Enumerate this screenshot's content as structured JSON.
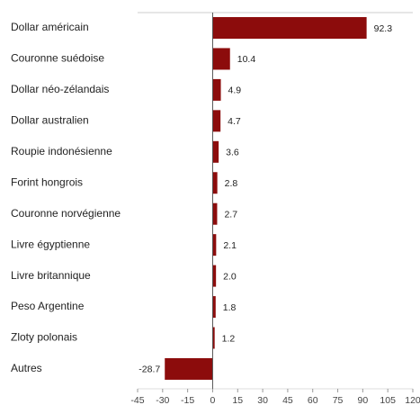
{
  "chart_data": {
    "type": "barh",
    "categories": [
      "Dollar américain",
      "Couronne suédoise",
      "Dollar néo-zélandais",
      "Dollar australien",
      "Roupie indonésienne",
      "Forint hongrois",
      "Couronne norvégienne",
      "Livre égyptienne",
      "Livre britannique",
      "Peso Argentine",
      "Zloty polonais",
      "Autres"
    ],
    "values": [
      92.3,
      10.4,
      4.9,
      4.7,
      3.6,
      2.8,
      2.7,
      2.1,
      2.0,
      1.8,
      1.2,
      -28.7
    ],
    "value_labels": [
      "92.3",
      "10.4",
      "4.9",
      "4.7",
      "3.6",
      "2.8",
      "2.7",
      "2.1",
      "2.0",
      "1.8",
      "1.2",
      "-28.7"
    ],
    "color": "#8c0c0c",
    "xlim": [
      -45,
      120
    ],
    "xticks": [
      -45,
      -30,
      -15,
      0,
      15,
      30,
      45,
      60,
      75,
      90,
      105,
      120
    ]
  }
}
